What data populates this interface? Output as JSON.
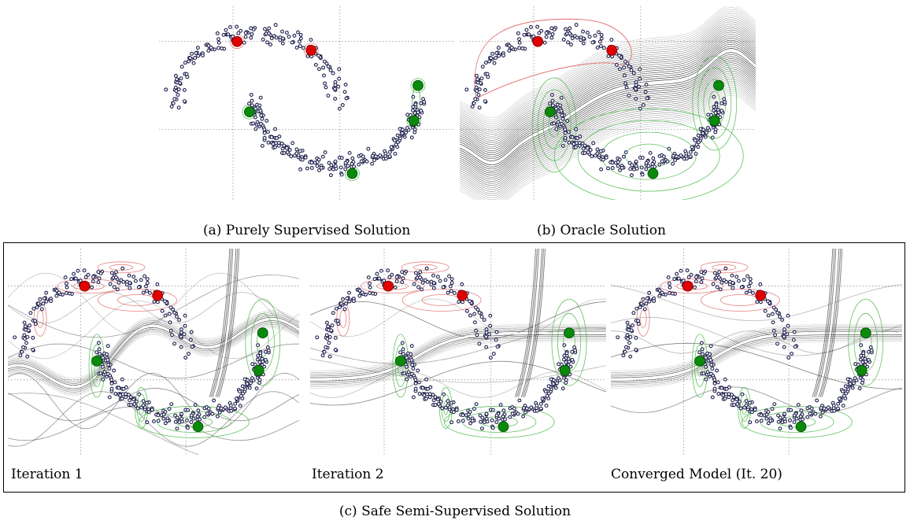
{
  "figure": {
    "top_captions": [
      "(a) Purely Supervised Solution",
      "(b) Oracle Solution"
    ],
    "bottom_captions": [
      "Iteration 1",
      "Iteration 2",
      "Converged Model (It. 20)"
    ],
    "group_caption": "(c) Safe Semi-Supervised Solution"
  },
  "colors": {
    "unlabeled_point": "#1f1f4d",
    "class_red": "#e00000",
    "class_green": "#0a8a0a",
    "red_contour": "#e06a6a",
    "green_contour": "#45b845",
    "boundary": "#333333",
    "grid": "#888888"
  },
  "chart_data": [
    {
      "type": "scatter",
      "panel": "a",
      "title": "(a) Purely Supervised Solution",
      "labeled_red": [
        [
          -0.35,
          0.95
        ],
        [
          0.55,
          0.85
        ]
      ],
      "labeled_green": [
        [
          -0.2,
          0.15
        ],
        [
          1.85,
          0.45
        ],
        [
          1.8,
          0.05
        ],
        [
          1.05,
          -0.55
        ]
      ],
      "grid": true
    },
    {
      "type": "scatter",
      "panel": "b",
      "title": "(b) Oracle Solution",
      "labeled_red": [
        [
          -0.35,
          0.95
        ],
        [
          0.55,
          0.85
        ]
      ],
      "labeled_green": [
        [
          -0.2,
          0.15
        ],
        [
          1.85,
          0.45
        ],
        [
          1.8,
          0.05
        ],
        [
          1.05,
          -0.55
        ]
      ],
      "grid": true
    },
    {
      "type": "scatter",
      "panel": "c1",
      "title": "Iteration 1",
      "labeled_red": [
        [
          -0.35,
          0.95
        ],
        [
          0.55,
          0.85
        ]
      ],
      "labeled_green": [
        [
          -0.2,
          0.15
        ],
        [
          1.85,
          0.45
        ],
        [
          1.8,
          0.05
        ],
        [
          1.05,
          -0.55
        ]
      ],
      "grid": true
    },
    {
      "type": "scatter",
      "panel": "c2",
      "title": "Iteration 2",
      "labeled_red": [
        [
          -0.35,
          0.95
        ],
        [
          0.55,
          0.85
        ]
      ],
      "labeled_green": [
        [
          -0.2,
          0.15
        ],
        [
          1.85,
          0.45
        ],
        [
          1.8,
          0.05
        ],
        [
          1.05,
          -0.55
        ]
      ],
      "grid": true
    },
    {
      "type": "scatter",
      "panel": "c3",
      "title": "Converged Model (It. 20)",
      "labeled_red": [
        [
          -0.35,
          0.95
        ],
        [
          0.55,
          0.85
        ]
      ],
      "labeled_green": [
        [
          -0.2,
          0.15
        ],
        [
          1.85,
          0.45
        ],
        [
          1.8,
          0.05
        ],
        [
          1.05,
          -0.55
        ]
      ],
      "grid": true
    }
  ]
}
